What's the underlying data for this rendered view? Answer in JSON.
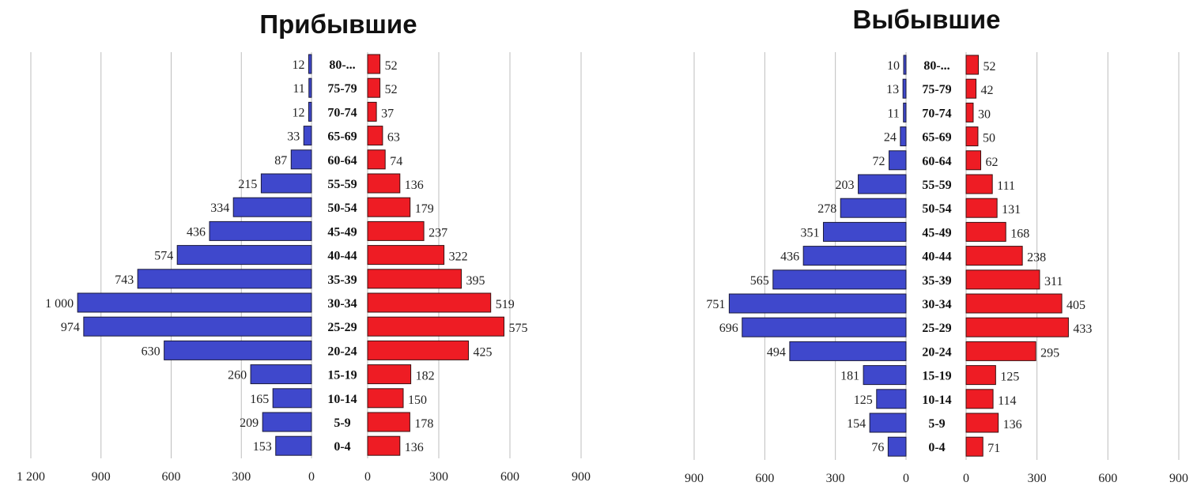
{
  "chart_data": [
    {
      "type": "bar",
      "title": "Прибывшие",
      "categories": [
        "80-...",
        "75-79",
        "70-74",
        "65-69",
        "60-64",
        "55-59",
        "50-54",
        "45-49",
        "40-44",
        "35-39",
        "30-34",
        "25-29",
        "20-24",
        "15-19",
        "10-14",
        "5-9",
        "0-4"
      ],
      "series": [
        {
          "values": [
            12,
            11,
            12,
            33,
            87,
            215,
            334,
            436,
            574,
            743,
            1000,
            974,
            630,
            260,
            165,
            209,
            153
          ],
          "color": "#3f48cc"
        },
        {
          "values": [
            52,
            52,
            37,
            63,
            74,
            136,
            179,
            237,
            322,
            395,
            519,
            575,
            425,
            182,
            150,
            178,
            136
          ],
          "color": "#ee1c24"
        }
      ],
      "value_labels_left": [
        "12",
        "11",
        "12",
        "33",
        "87",
        "215",
        "334",
        "436",
        "574",
        "743",
        "1 000",
        "974",
        "630",
        "260",
        "165",
        "209",
        "153"
      ],
      "value_labels_right": [
        "52",
        "52",
        "37",
        "63",
        "74",
        "136",
        "179",
        "237",
        "322",
        "395",
        "519",
        "575",
        "425",
        "182",
        "150",
        "178",
        "136"
      ],
      "left_axis": {
        "range": [
          0,
          1200
        ],
        "ticks": [
          1200,
          900,
          600,
          300,
          0
        ],
        "tick_labels": [
          "1 200",
          "900",
          "600",
          "300",
          "0"
        ]
      },
      "right_axis": {
        "range": [
          0,
          900
        ],
        "ticks": [
          0,
          300,
          600,
          900
        ],
        "tick_labels": [
          "0",
          "300",
          "600",
          "900"
        ]
      },
      "grid": true
    },
    {
      "type": "bar",
      "title": "Выбывшие",
      "categories": [
        "80-...",
        "75-79",
        "70-74",
        "65-69",
        "60-64",
        "55-59",
        "50-54",
        "45-49",
        "40-44",
        "35-39",
        "30-34",
        "25-29",
        "20-24",
        "15-19",
        "10-14",
        "5-9",
        "0-4"
      ],
      "series": [
        {
          "values": [
            10,
            13,
            11,
            24,
            72,
            203,
            278,
            351,
            436,
            565,
            751,
            696,
            494,
            181,
            125,
            154,
            76
          ],
          "color": "#3f48cc"
        },
        {
          "values": [
            52,
            42,
            30,
            50,
            62,
            111,
            131,
            168,
            238,
            311,
            405,
            433,
            295,
            125,
            114,
            136,
            71
          ],
          "color": "#ee1c24"
        }
      ],
      "value_labels_left": [
        "10",
        "13",
        "11",
        "24",
        "72",
        "203",
        "278",
        "351",
        "436",
        "565",
        "751",
        "696",
        "494",
        "181",
        "125",
        "154",
        "76"
      ],
      "value_labels_right": [
        "52",
        "42",
        "30",
        "50",
        "62",
        "111",
        "131",
        "168",
        "238",
        "311",
        "405",
        "433",
        "295",
        "125",
        "114",
        "136",
        "71"
      ],
      "left_axis": {
        "range": [
          0,
          900
        ],
        "ticks": [
          900,
          600,
          300,
          0
        ],
        "tick_labels": [
          "900",
          "600",
          "300",
          "0"
        ]
      },
      "right_axis": {
        "range": [
          0,
          900
        ],
        "ticks": [
          0,
          300,
          600,
          900
        ],
        "tick_labels": [
          "0",
          "300",
          "600",
          "900"
        ]
      },
      "grid": true
    }
  ]
}
